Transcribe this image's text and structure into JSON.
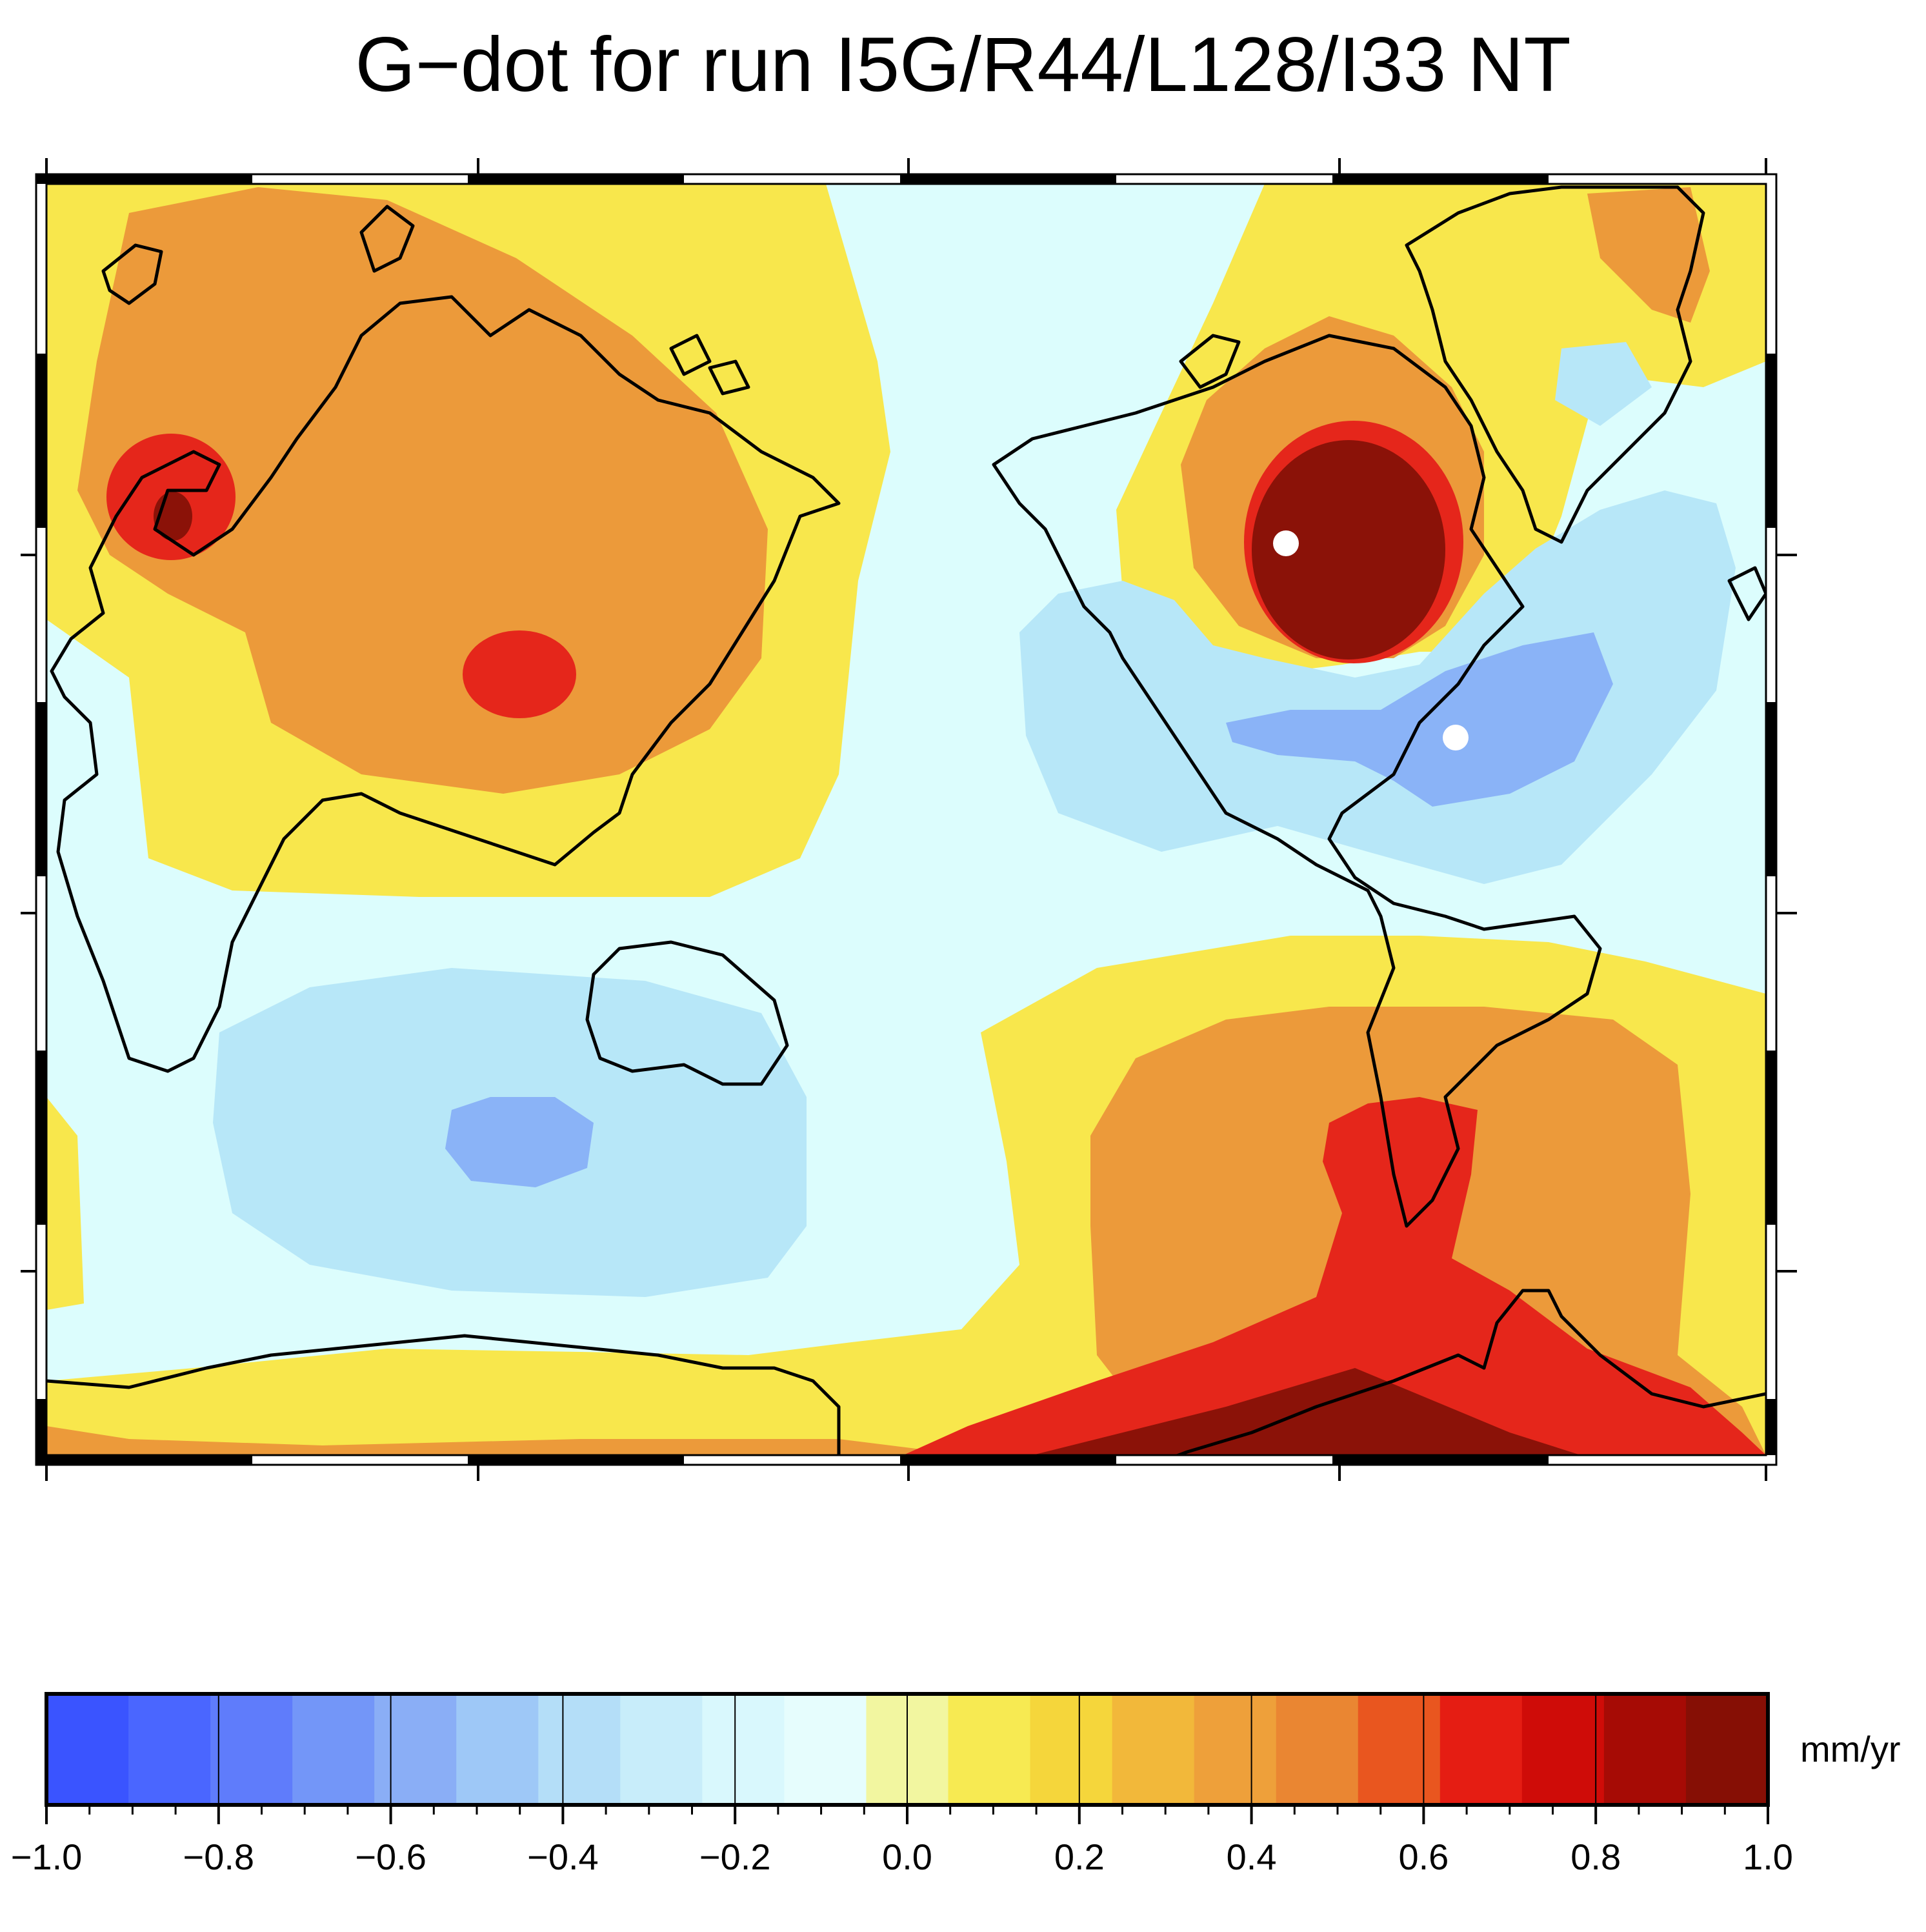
{
  "title": "G−dot for run I5G/R44/L128/I33 NT",
  "colorbar": {
    "unit": "mm/yr",
    "ticks": [
      "−1.0",
      "−0.8",
      "−0.6",
      "−0.4",
      "−0.2",
      "0.0",
      "0.2",
      "0.4",
      "0.6",
      "0.8",
      "1.0"
    ],
    "range": [
      -1.0,
      1.0
    ],
    "colors": [
      "#3a54ff",
      "#4a66ff",
      "#5f7cfb",
      "#7396f8",
      "#8aaef6",
      "#9ec8f7",
      "#b4def8",
      "#c8edfa",
      "#d9f8fd",
      "#e6fdfd",
      "#f2f6a0",
      "#f7ea52",
      "#f5d63b",
      "#f2b83a",
      "#eea03a",
      "#ea8632",
      "#e9561f",
      "#e51d13",
      "#cf0c08",
      "#a60b05",
      "#860f05"
    ]
  },
  "map": {
    "palette": {
      "ocean_neutral": "#dcfdfd",
      "light_blue": "#b7e7f8",
      "mid_blue": "#8ab3f7",
      "yellow": "#f8e74c",
      "orange": "#ec9a3a",
      "red": "#e5261b",
      "dark_red": "#8b1208"
    },
    "markers": [
      "hudson-bay-point",
      "us-east-coast-point"
    ]
  }
}
